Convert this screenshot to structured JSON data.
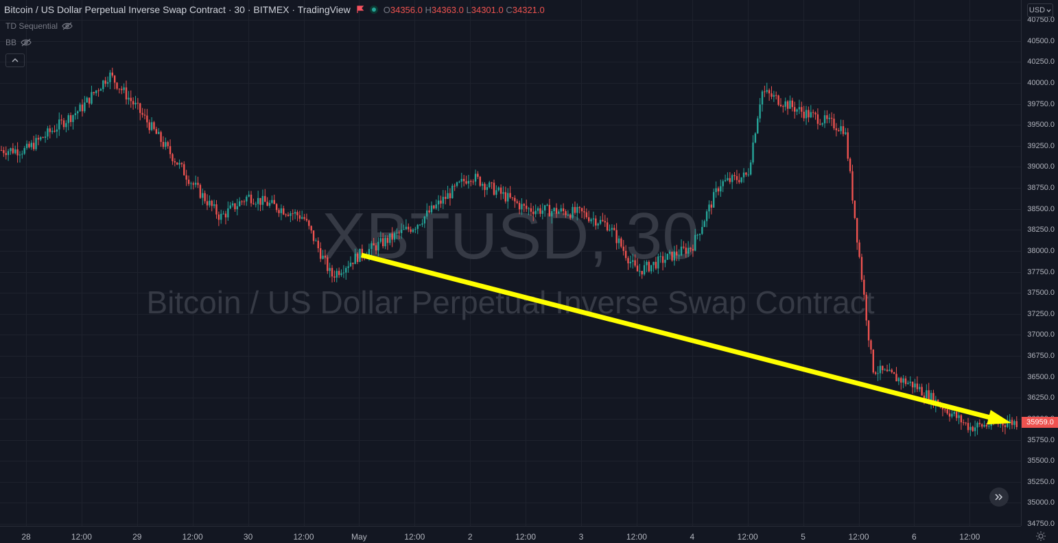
{
  "legend": {
    "title": "Bitcoin / US Dollar Perpetual Inverse Swap Contract · 30 · BITMEX · TradingView",
    "open_key": "O",
    "open": "34356.0",
    "high_key": "H",
    "high": "34363.0",
    "low_key": "L",
    "low": "34301.0",
    "close_key": "C",
    "close": "34321.0"
  },
  "indicators": [
    {
      "label": "TD Sequential",
      "icon": "eye-off-icon"
    },
    {
      "label": "BB",
      "icon": "eye-off-icon"
    }
  ],
  "watermark": {
    "symbol": "XBTUSD, 30",
    "description": "Bitcoin / US Dollar Perpetual Inverse Swap Contract"
  },
  "price_axis": {
    "currency": "USD",
    "labels": [
      "40750.0",
      "40500.0",
      "40250.0",
      "40000.0",
      "39750.0",
      "39500.0",
      "39250.0",
      "39000.0",
      "38750.0",
      "38500.0",
      "38250.0",
      "38000.0",
      "37750.0",
      "37500.0",
      "37250.0",
      "37000.0",
      "36750.0",
      "36500.0",
      "36250.0",
      "36000.0",
      "35750.0",
      "35500.0",
      "35250.0",
      "35000.0",
      "34750.0"
    ],
    "current_price": "35959.0"
  },
  "time_axis": {
    "labels": [
      "28",
      "12:00",
      "29",
      "12:00",
      "30",
      "12:00",
      "May",
      "12:00",
      "2",
      "12:00",
      "3",
      "12:00",
      "4",
      "12:00",
      "5",
      "12:00",
      "6",
      "12:00"
    ]
  },
  "colors": {
    "background": "#131722",
    "up": "#26a69a",
    "down": "#ef5350",
    "arrow": "#ffff00"
  },
  "icons": {
    "flag": "flag-icon",
    "status": "status-dot-icon",
    "collapse": "chevron-up-icon",
    "scroll": "double-chevron-right-icon",
    "settings": "gear-icon"
  },
  "chart_data": {
    "type": "candlestick",
    "symbol": "XBTUSD",
    "interval": "30",
    "ylim": [
      34750,
      40750
    ],
    "x_ticks": [
      "28",
      "12:00",
      "29",
      "12:00",
      "30",
      "12:00",
      "May",
      "12:00",
      "2",
      "12:00",
      "3",
      "12:00",
      "4",
      "12:00",
      "5",
      "12:00",
      "6",
      "12:00"
    ],
    "approx_close_path": [
      {
        "x": "28 00:00",
        "y": 39200
      },
      {
        "x": "28 12:00",
        "y": 39700
      },
      {
        "x": "28 18:00",
        "y": 40100
      },
      {
        "x": "29 00:00",
        "y": 39700
      },
      {
        "x": "29 12:00",
        "y": 38800
      },
      {
        "x": "29 18:00",
        "y": 38400
      },
      {
        "x": "30 00:00",
        "y": 38650
      },
      {
        "x": "30 12:00",
        "y": 38400
      },
      {
        "x": "30 18:00",
        "y": 37700
      },
      {
        "x": "May 00:00",
        "y": 37950
      },
      {
        "x": "May 12:00",
        "y": 38300
      },
      {
        "x": "2 00:00",
        "y": 38900
      },
      {
        "x": "2 12:00",
        "y": 38500
      },
      {
        "x": "3 00:00",
        "y": 38450
      },
      {
        "x": "3 06:00",
        "y": 38300
      },
      {
        "x": "3 12:00",
        "y": 37750
      },
      {
        "x": "4 00:00",
        "y": 38050
      },
      {
        "x": "4 06:00",
        "y": 38800
      },
      {
        "x": "4 12:00",
        "y": 38900
      },
      {
        "x": "4 15:00",
        "y": 39900
      },
      {
        "x": "5 00:00",
        "y": 39650
      },
      {
        "x": "5 09:00",
        "y": 39450
      },
      {
        "x": "5 12:00",
        "y": 38000
      },
      {
        "x": "5 15:00",
        "y": 36600
      },
      {
        "x": "6 00:00",
        "y": 36400
      },
      {
        "x": "6 12:00",
        "y": 35900
      },
      {
        "x": "6 20:00",
        "y": 35959
      }
    ],
    "annotation": {
      "type": "arrow",
      "from": {
        "x": "May 00:30",
        "y": 37950
      },
      "to": {
        "x": "6 21:00",
        "y": 35950
      },
      "color": "#ffff00"
    }
  }
}
